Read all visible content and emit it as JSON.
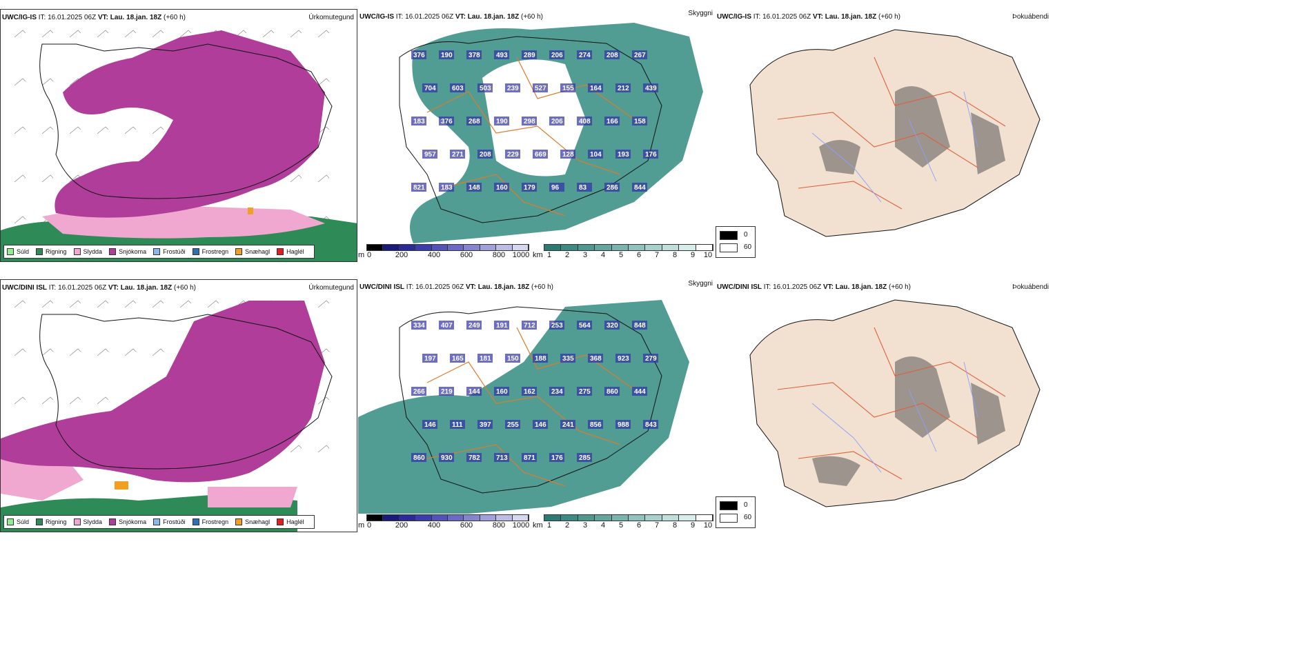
{
  "rows": [
    {
      "model": "UWC/IG-IS",
      "it_label": "IT:",
      "it": "16.01.2025 06Z",
      "vt_label": "VT:",
      "vt": "Lau. 18.jan. 18Z",
      "lead": "(+60 h)",
      "cloud_values": [
        "376",
        "190",
        "378",
        "493",
        "289",
        "206",
        "274",
        "208",
        "267",
        "704",
        "603",
        "503",
        "239",
        "527",
        "155",
        "164",
        "212",
        "439",
        "183",
        "376",
        "268",
        "190",
        "298",
        "206",
        "408",
        "166",
        "158",
        "957",
        "271",
        "208",
        "229",
        "669",
        "128",
        "104",
        "193",
        "176",
        "821",
        "183",
        "148",
        "160",
        "179",
        "96",
        "83",
        "286",
        "844"
      ]
    },
    {
      "model": "UWC/DINI ISL",
      "it_label": "IT:",
      "it": "16.01.2025 06Z",
      "vt_label": "VT:",
      "vt": "Lau. 18.jan. 18Z",
      "lead": "(+60 h)",
      "cloud_values": [
        "334",
        "407",
        "249",
        "191",
        "712",
        "253",
        "564",
        "320",
        "848",
        "197",
        "165",
        "181",
        "150",
        "188",
        "335",
        "368",
        "923",
        "279",
        "266",
        "219",
        "144",
        "160",
        "162",
        "234",
        "275",
        "860",
        "444",
        "146",
        "111",
        "397",
        "255",
        "146",
        "241",
        "856",
        "988",
        "843",
        "860",
        "930",
        "782",
        "713",
        "871",
        "176",
        "285"
      ]
    }
  ],
  "panel_labels": {
    "precip": "Úrkomutegund",
    "cloud": "Skyggni",
    "fog": "Þokuábendi"
  },
  "precip_legend": [
    {
      "label": "Súld",
      "color": "#90ee90"
    },
    {
      "label": "Rigning",
      "color": "#2e8b57"
    },
    {
      "label": "Slydda",
      "color": "#f0a8d0"
    },
    {
      "label": "Snjókoma",
      "color": "#b03d9a"
    },
    {
      "label": "Frostúði",
      "color": "#87b8ee"
    },
    {
      "label": "Frostregn",
      "color": "#2f6fb5"
    },
    {
      "label": "Snæhagl",
      "color": "#f0a020"
    },
    {
      "label": "Haglél",
      "color": "#e02020"
    }
  ],
  "cloudbase_bar": {
    "unit": "m",
    "ticks": [
      "0",
      "200",
      "400",
      "600",
      "800",
      "1000"
    ],
    "colors": [
      "#000000",
      "#1a1a7a",
      "#2a2a9a",
      "#3c3cad",
      "#5252b8",
      "#6a6ac4",
      "#8585cf",
      "#a0a0da",
      "#bcbce5",
      "#d6d6ef"
    ]
  },
  "visibility_bar": {
    "unit": "km",
    "ticks": [
      "1",
      "2",
      "3",
      "4",
      "5",
      "6",
      "7",
      "8",
      "9",
      "10"
    ],
    "colors": [
      "#2b7a73",
      "#3d8a82",
      "#4f9891",
      "#63a6a0",
      "#79b4ae",
      "#90c3bd",
      "#a8d1cc",
      "#c0dfdb",
      "#d8ecea",
      "#ffffff"
    ]
  },
  "fog_legend": [
    {
      "label": "0",
      "color": "#000000"
    },
    {
      "label": "60",
      "color": "#ffffff"
    }
  ],
  "colors": {
    "snow": "#b03d9a",
    "rain": "#2e8b57",
    "sleet": "#f0a8d0",
    "vis_teal": "#3e9288",
    "cloud_blue": "#3232a8",
    "roads": "#e07a2a",
    "land_fog": "#f2e0d0",
    "rivers": "#8aa0ff",
    "coast": "#111111"
  }
}
